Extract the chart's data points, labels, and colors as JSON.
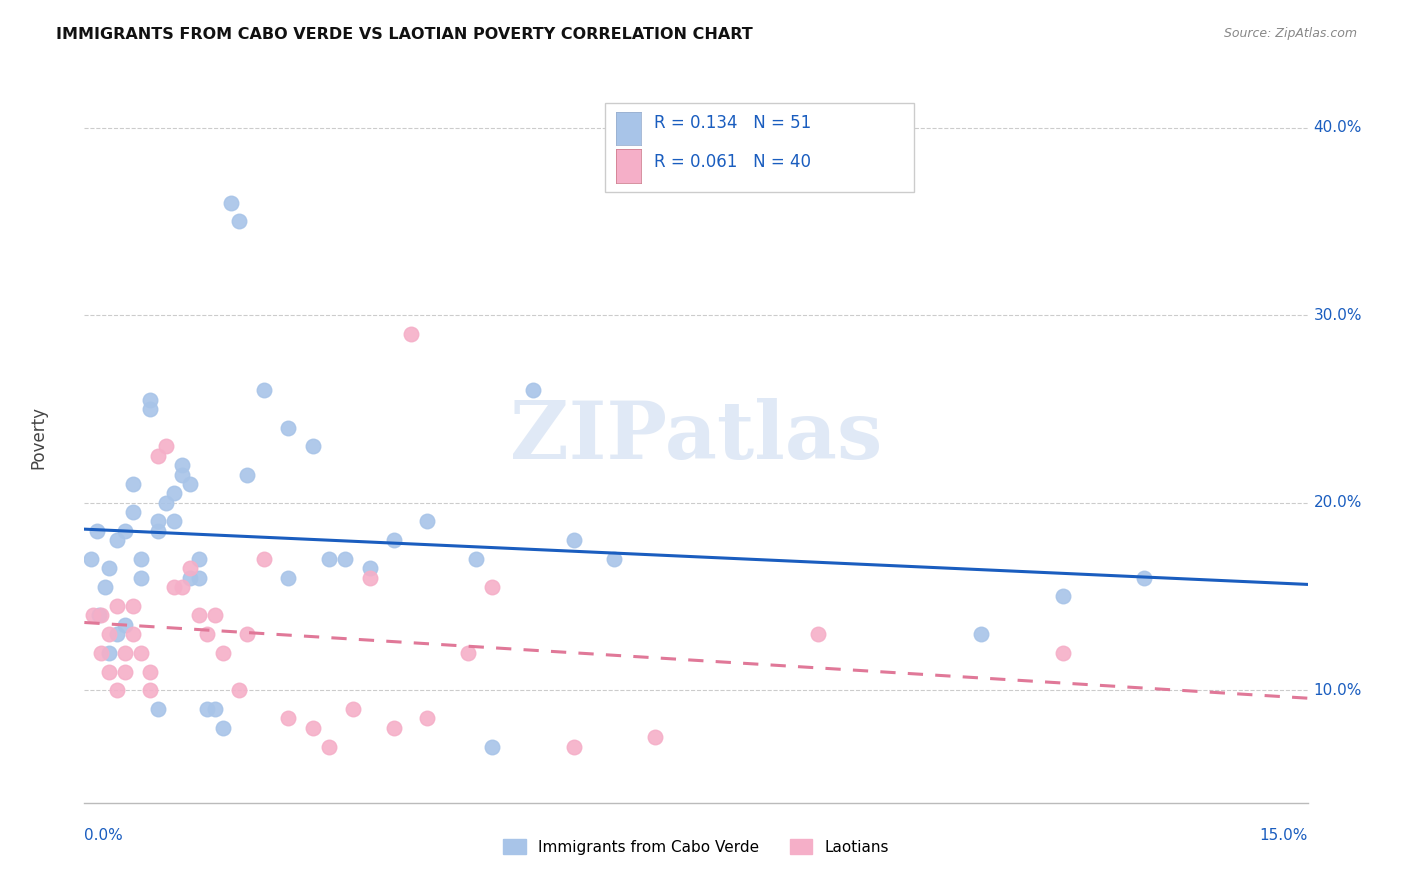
{
  "title": "IMMIGRANTS FROM CABO VERDE VS LAOTIAN POVERTY CORRELATION CHART",
  "source": "Source: ZipAtlas.com",
  "ylabel": "Poverty",
  "xlim": [
    0.0,
    0.15
  ],
  "ylim": [
    0.04,
    0.43
  ],
  "ytick_vals": [
    0.1,
    0.2,
    0.3,
    0.4
  ],
  "ytick_labels": [
    "10.0%",
    "20.0%",
    "30.0%",
    "40.0%"
  ],
  "R_blue": "0.134",
  "N_blue": 51,
  "R_pink": "0.061",
  "N_pink": 40,
  "legend_label_blue": "Immigrants from Cabo Verde",
  "legend_label_pink": "Laotians",
  "color_blue": "#a8c4e8",
  "color_pink": "#f5afc8",
  "line_color_blue": "#1a5dbf",
  "line_color_pink": "#e07898",
  "watermark": "ZIPatlas",
  "blue_x": [
    0.0008,
    0.0015,
    0.0018,
    0.0025,
    0.003,
    0.003,
    0.004,
    0.004,
    0.005,
    0.005,
    0.006,
    0.006,
    0.007,
    0.007,
    0.008,
    0.008,
    0.009,
    0.009,
    0.009,
    0.01,
    0.011,
    0.011,
    0.012,
    0.012,
    0.013,
    0.013,
    0.014,
    0.014,
    0.015,
    0.016,
    0.017,
    0.018,
    0.019,
    0.022,
    0.025,
    0.028,
    0.032,
    0.038,
    0.042,
    0.05,
    0.055,
    0.06,
    0.065,
    0.11,
    0.12,
    0.13,
    0.025,
    0.03,
    0.035,
    0.048,
    0.02
  ],
  "blue_y": [
    0.17,
    0.185,
    0.14,
    0.155,
    0.165,
    0.12,
    0.18,
    0.13,
    0.185,
    0.135,
    0.195,
    0.21,
    0.17,
    0.16,
    0.255,
    0.25,
    0.185,
    0.19,
    0.09,
    0.2,
    0.205,
    0.19,
    0.22,
    0.215,
    0.21,
    0.16,
    0.17,
    0.16,
    0.09,
    0.09,
    0.08,
    0.36,
    0.35,
    0.26,
    0.24,
    0.23,
    0.17,
    0.18,
    0.19,
    0.07,
    0.26,
    0.18,
    0.17,
    0.13,
    0.15,
    0.16,
    0.16,
    0.17,
    0.165,
    0.17,
    0.215
  ],
  "pink_x": [
    0.001,
    0.002,
    0.002,
    0.003,
    0.003,
    0.004,
    0.004,
    0.005,
    0.005,
    0.006,
    0.006,
    0.007,
    0.008,
    0.008,
    0.009,
    0.01,
    0.011,
    0.012,
    0.013,
    0.014,
    0.015,
    0.016,
    0.017,
    0.019,
    0.02,
    0.022,
    0.025,
    0.028,
    0.03,
    0.033,
    0.035,
    0.038,
    0.04,
    0.042,
    0.047,
    0.05,
    0.06,
    0.07,
    0.09,
    0.12
  ],
  "pink_y": [
    0.14,
    0.14,
    0.12,
    0.13,
    0.11,
    0.145,
    0.1,
    0.12,
    0.11,
    0.145,
    0.13,
    0.12,
    0.1,
    0.11,
    0.225,
    0.23,
    0.155,
    0.155,
    0.165,
    0.14,
    0.13,
    0.14,
    0.12,
    0.1,
    0.13,
    0.17,
    0.085,
    0.08,
    0.07,
    0.09,
    0.16,
    0.08,
    0.29,
    0.085,
    0.12,
    0.155,
    0.07,
    0.075,
    0.13,
    0.12
  ]
}
